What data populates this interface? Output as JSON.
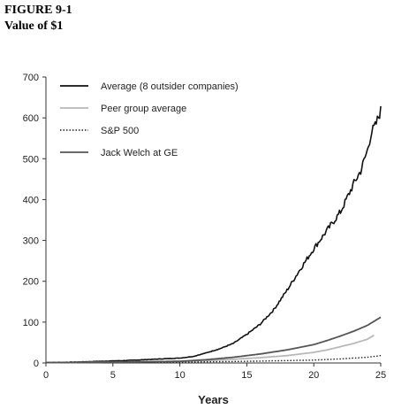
{
  "figure": {
    "number": "FIGURE 9-1",
    "title": "Value of $1"
  },
  "chart_data": {
    "type": "line",
    "xlabel": "Years",
    "ylabel": "",
    "xlim": [
      0,
      25
    ],
    "ylim": [
      0,
      700
    ],
    "x_ticks": [
      0,
      5,
      10,
      15,
      20,
      25
    ],
    "y_ticks": [
      0,
      100,
      200,
      300,
      400,
      500,
      600,
      700
    ],
    "grid": false,
    "legend_position": "top-left",
    "series": [
      {
        "name": "Average (8 outsider companies)",
        "color": "#111111",
        "style": "solid",
        "x": [
          0,
          2,
          4,
          6,
          8,
          10,
          11,
          12,
          13,
          14,
          15,
          16,
          17,
          18,
          19,
          20,
          21,
          22,
          23,
          23.5,
          24,
          24.3,
          24.6,
          25
        ],
        "y": [
          1,
          2,
          4,
          6,
          9,
          12,
          16,
          25,
          35,
          48,
          70,
          95,
          130,
          178,
          230,
          280,
          325,
          370,
          440,
          470,
          520,
          565,
          580,
          618
        ]
      },
      {
        "name": "Peer group average",
        "color": "#b8b8b8",
        "style": "solid",
        "x": [
          0,
          5,
          10,
          12,
          14,
          16,
          18,
          20,
          21,
          22,
          23,
          24,
          24.5
        ],
        "y": [
          1,
          2,
          4,
          6,
          9,
          13,
          18,
          26,
          32,
          40,
          48,
          58,
          68
        ]
      },
      {
        "name": "S&P 500",
        "color": "#222222",
        "style": "dotted",
        "x": [
          0,
          5,
          10,
          15,
          20,
          22,
          24,
          25
        ],
        "y": [
          1,
          1,
          2,
          4,
          7,
          10,
          14,
          18
        ]
      },
      {
        "name": "Jack Welch at GE",
        "color": "#555555",
        "style": "solid",
        "x": [
          0,
          5,
          10,
          12,
          14,
          16,
          18,
          20,
          21,
          22,
          23,
          24,
          25
        ],
        "y": [
          1,
          2,
          4,
          8,
          14,
          22,
          32,
          45,
          55,
          66,
          78,
          92,
          112
        ]
      }
    ]
  }
}
